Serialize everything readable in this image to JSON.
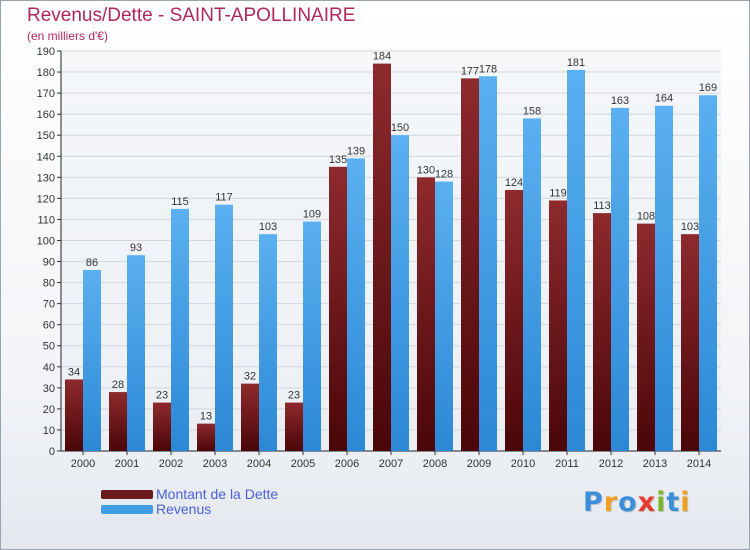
{
  "title": "Revenus/Dette - SAINT-APOLLINAIRE",
  "subtitle": "(en milliers d'€)",
  "colors": {
    "dette": "#7a1418",
    "revenus": "#3f9ee6",
    "title": "#b0285a",
    "legend_text": "#4a5fd6"
  },
  "legend": {
    "items": [
      {
        "label": "Montant de la Dette",
        "color": "#6a1a1a"
      },
      {
        "label": "Revenus",
        "color": "#3f9ee6"
      }
    ]
  },
  "logo": {
    "text": "Proxiti",
    "letter_colors": [
      "#3a8fd8",
      "#f0a020",
      "#3a8fd8",
      "#e63a2a",
      "#78b828",
      "#3a8fd8",
      "#f0a020"
    ]
  },
  "chart_data": {
    "type": "bar",
    "categories": [
      "2000",
      "2001",
      "2002",
      "2003",
      "2004",
      "2005",
      "2006",
      "2007",
      "2008",
      "2009",
      "2010",
      "2011",
      "2012",
      "2013",
      "2014"
    ],
    "series": [
      {
        "name": "Montant de la Dette",
        "values": [
          34,
          28,
          23,
          13,
          32,
          23,
          135,
          184,
          130,
          177,
          124,
          119,
          113,
          108,
          103
        ]
      },
      {
        "name": "Revenus",
        "values": [
          86,
          93,
          115,
          117,
          103,
          109,
          139,
          150,
          128,
          178,
          158,
          181,
          163,
          164,
          169
        ]
      }
    ],
    "ylim": [
      0,
      190
    ],
    "ytick_step": 10,
    "grid": true,
    "legend_position": "bottom-left"
  }
}
